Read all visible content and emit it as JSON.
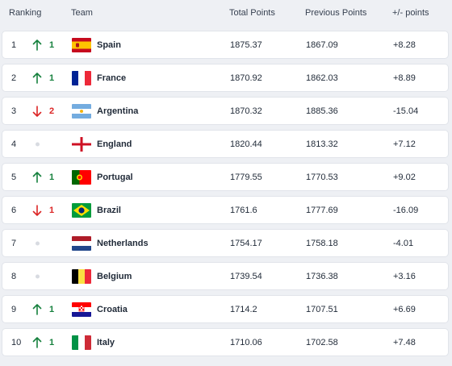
{
  "header": {
    "ranking": "Ranking",
    "team": "Team",
    "total": "Total Points",
    "previous": "Previous Points",
    "diff": "+/- points"
  },
  "rows": [
    {
      "rank": "1",
      "trend": "up",
      "change": "1",
      "team": "Spain",
      "flag": "spain-flag",
      "total": "1875.37",
      "previous": "1867.09",
      "diff": "+8.28"
    },
    {
      "rank": "2",
      "trend": "up",
      "change": "1",
      "team": "France",
      "flag": "france-flag",
      "total": "1870.92",
      "previous": "1862.03",
      "diff": "+8.89"
    },
    {
      "rank": "3",
      "trend": "down",
      "change": "2",
      "team": "Argentina",
      "flag": "argentina-flag",
      "total": "1870.32",
      "previous": "1885.36",
      "diff": "-15.04"
    },
    {
      "rank": "4",
      "trend": "none",
      "change": "",
      "team": "England",
      "flag": "england-flag",
      "total": "1820.44",
      "previous": "1813.32",
      "diff": "+7.12"
    },
    {
      "rank": "5",
      "trend": "up",
      "change": "1",
      "team": "Portugal",
      "flag": "portugal-flag",
      "total": "1779.55",
      "previous": "1770.53",
      "diff": "+9.02"
    },
    {
      "rank": "6",
      "trend": "down",
      "change": "1",
      "team": "Brazil",
      "flag": "brazil-flag",
      "total": "1761.6",
      "previous": "1777.69",
      "diff": "-16.09"
    },
    {
      "rank": "7",
      "trend": "none",
      "change": "",
      "team": "Netherlands",
      "flag": "netherlands-flag",
      "total": "1754.17",
      "previous": "1758.18",
      "diff": "-4.01"
    },
    {
      "rank": "8",
      "trend": "none",
      "change": "",
      "team": "Belgium",
      "flag": "belgium-flag",
      "total": "1739.54",
      "previous": "1736.38",
      "diff": "+3.16"
    },
    {
      "rank": "9",
      "trend": "up",
      "change": "1",
      "team": "Croatia",
      "flag": "croatia-flag",
      "total": "1714.2",
      "previous": "1707.51",
      "diff": "+6.69"
    },
    {
      "rank": "10",
      "trend": "up",
      "change": "1",
      "team": "Italy",
      "flag": "italy-flag",
      "total": "1710.06",
      "previous": "1702.58",
      "diff": "+7.48"
    }
  ],
  "colors": {
    "up": "#15803d",
    "down": "#dc2626",
    "neutral_dot": "#d8dbe1",
    "background": "#eef0f4",
    "row_background": "#ffffff"
  }
}
